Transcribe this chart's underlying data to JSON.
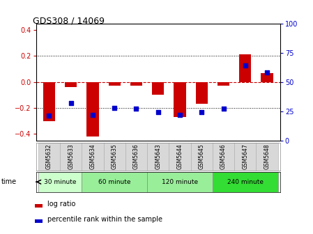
{
  "title": "GDS308 / 14069",
  "samples": [
    "GSM5632",
    "GSM5633",
    "GSM5634",
    "GSM5635",
    "GSM5636",
    "GSM5643",
    "GSM5644",
    "GSM5645",
    "GSM5646",
    "GSM5647",
    "GSM5648"
  ],
  "log_ratio": [
    -0.3,
    -0.04,
    -0.42,
    -0.03,
    -0.03,
    -0.1,
    -0.27,
    -0.17,
    -0.03,
    0.21,
    0.07
  ],
  "percentile": [
    21,
    32,
    22,
    28,
    27,
    24,
    22,
    24,
    27,
    64,
    58
  ],
  "ylim": [
    -0.45,
    0.45
  ],
  "y2lim": [
    0,
    100
  ],
  "yticks": [
    -0.4,
    -0.2,
    0.0,
    0.2,
    0.4
  ],
  "y2ticks": [
    0,
    25,
    50,
    75,
    100
  ],
  "bar_color": "#cc0000",
  "dot_color": "#0000cc",
  "zero_line_color": "#cc0000",
  "grid_line_color": "#000000",
  "time_groups": [
    {
      "label": "30 minute",
      "start": 0,
      "end": 2
    },
    {
      "label": "60 minute",
      "start": 2,
      "end": 5
    },
    {
      "label": "120 minute",
      "start": 5,
      "end": 8
    },
    {
      "label": "240 minute",
      "start": 8,
      "end": 11
    }
  ],
  "group_colors": [
    "#ccffcc",
    "#99ee99",
    "#66dd66",
    "#33cc33"
  ],
  "time_label": "time",
  "legend_log_ratio": "log ratio",
  "legend_percentile": "percentile rank within the sample",
  "bar_width": 0.55,
  "dot_size": 18,
  "label_bg": "#d8d8d8"
}
